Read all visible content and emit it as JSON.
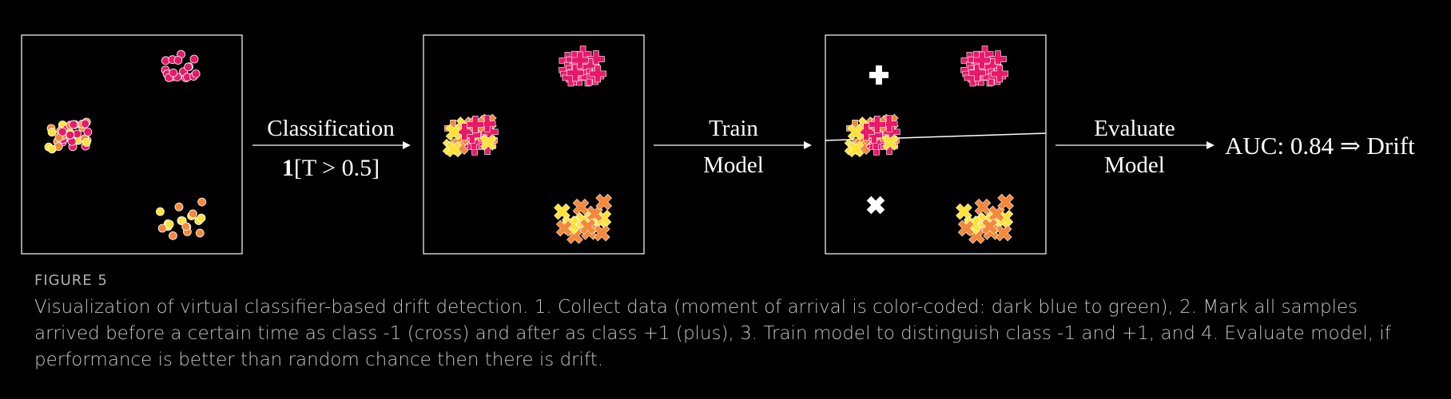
{
  "steps": {
    "arrow1_top": "Classification",
    "arrow1_bottom_bold": "1",
    "arrow1_bottom_rest": "[T > 0.5]",
    "arrow2_top": "Train",
    "arrow2_bottom": "Model",
    "arrow3_top": "Evaluate",
    "arrow3_bottom": "Model",
    "result": "AUC: 0.84 ⇒ Drift"
  },
  "caption": {
    "figure_label": "FIGURE 5",
    "text": "Visualization of virtual classifier-based drift detection. 1. Collect data (moment of arrival is color-coded: dark blue to green), 2. Mark all samples arrived before a certain time as class -1 (cross) and after as class +1 (plus), 3. Train model to distinguish class -1 and +1, and 4. Evaluate model, if performance is better than random chance then there is drift."
  },
  "colors": {
    "background": "#000000",
    "late_samples": "#e8186a",
    "mid_samples": "#f5883a",
    "early_samples": "#ffe23a",
    "frame": "#ffffff"
  },
  "legend_icons": [
    "plus-icon",
    "cross-icon"
  ]
}
